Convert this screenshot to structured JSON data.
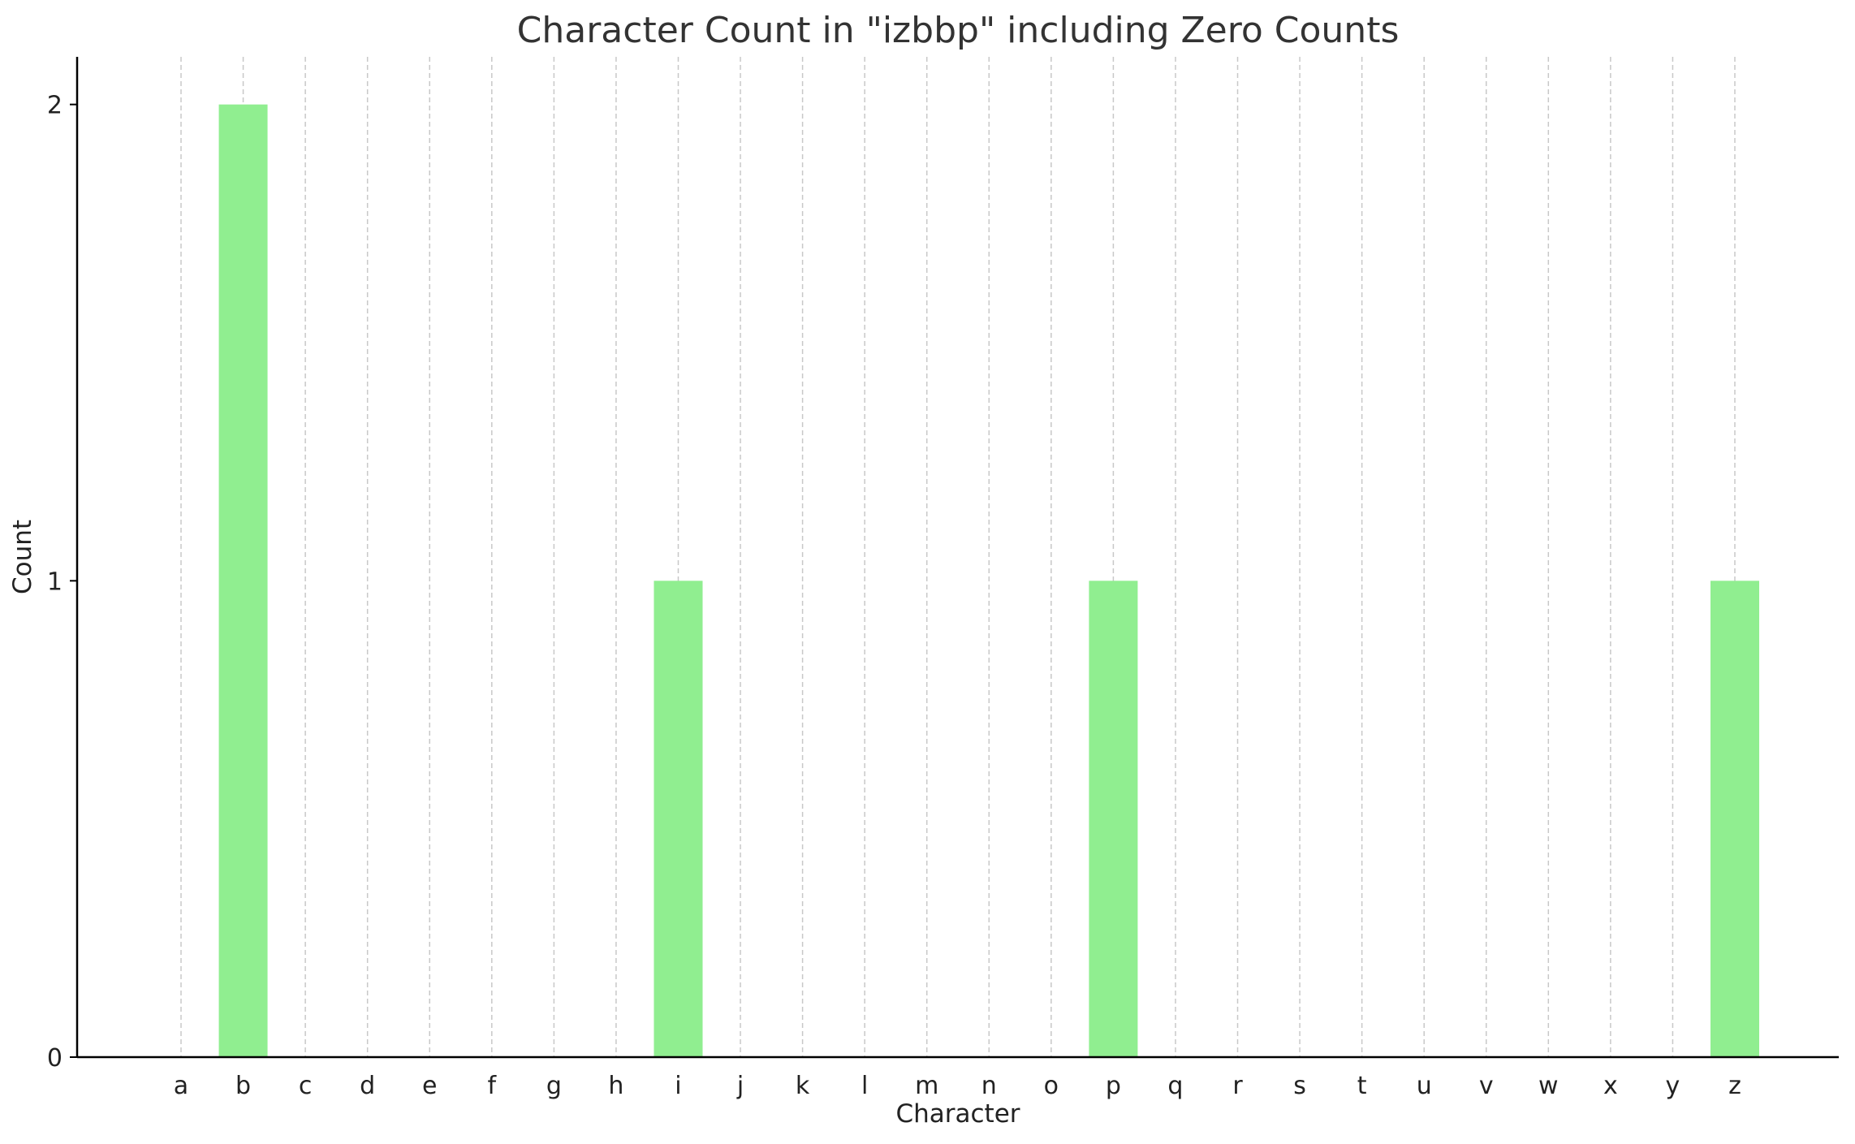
{
  "chart_data": {
    "type": "bar",
    "title": "Character Count in \"izbbp\" including Zero Counts",
    "xlabel": "Character",
    "ylabel": "Count",
    "categories": [
      "a",
      "b",
      "c",
      "d",
      "e",
      "f",
      "g",
      "h",
      "i",
      "j",
      "k",
      "l",
      "m",
      "n",
      "o",
      "p",
      "q",
      "r",
      "s",
      "t",
      "u",
      "v",
      "w",
      "x",
      "y",
      "z"
    ],
    "values": [
      0,
      2,
      0,
      0,
      0,
      0,
      0,
      0,
      1,
      0,
      0,
      0,
      0,
      0,
      0,
      1,
      0,
      0,
      0,
      0,
      0,
      0,
      0,
      0,
      0,
      1
    ],
    "ylim": [
      0,
      2.1
    ],
    "yticks": [
      0,
      1,
      2
    ],
    "grid": "vertical dashed",
    "bar_color": "#90ee90"
  }
}
